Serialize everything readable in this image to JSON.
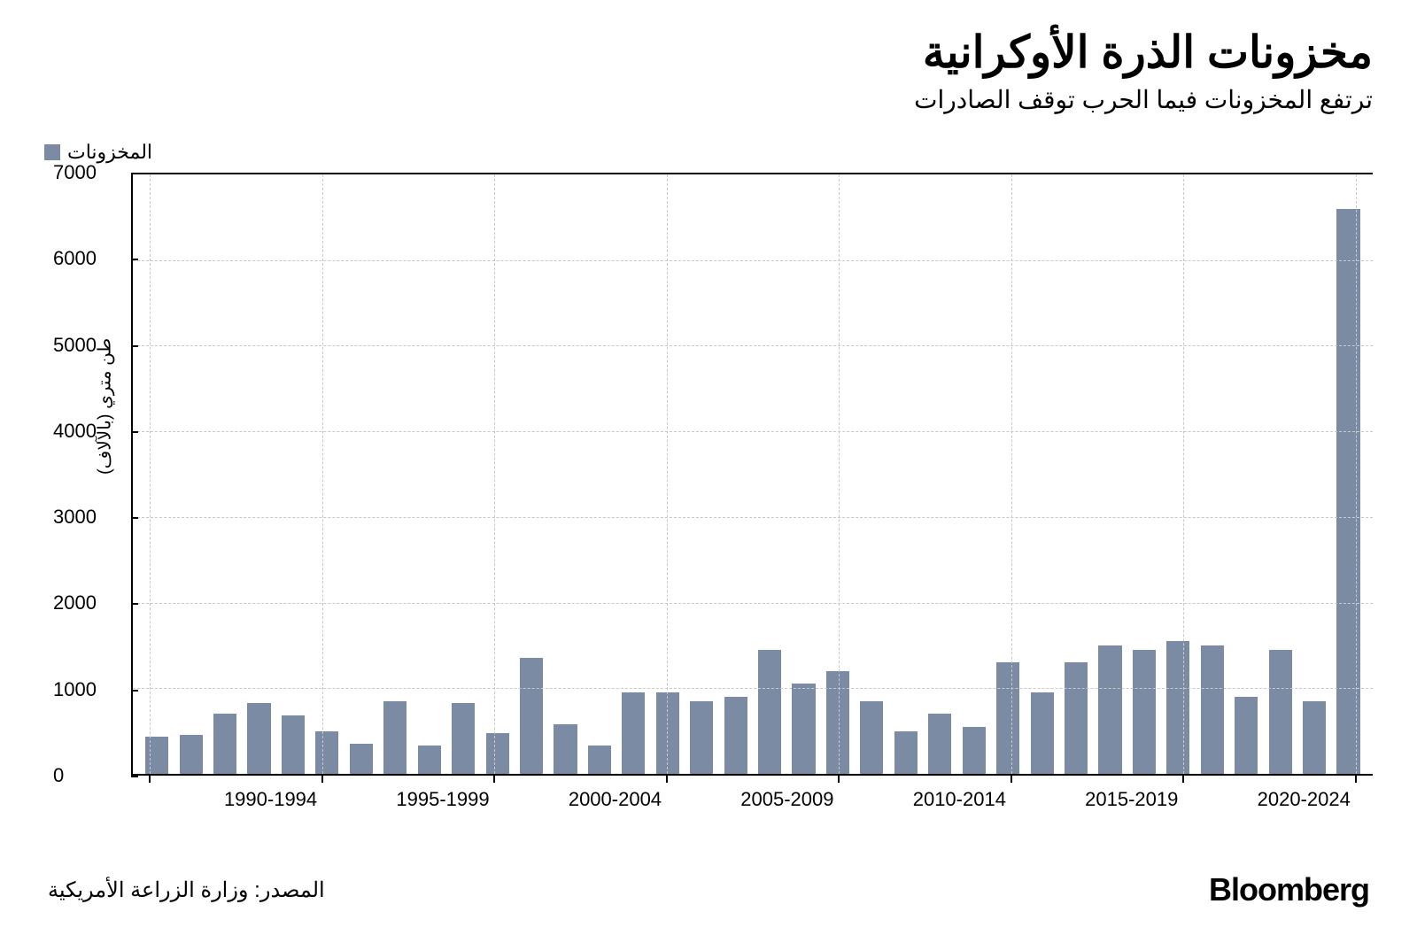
{
  "title": "مخزونات الذرة الأوكرانية",
  "subtitle": "ترتفع المخزونات فيما الحرب توقف الصادرات",
  "legend": {
    "label": "المخزونات",
    "swatch_color": "#7a8ba3"
  },
  "y_axis": {
    "title": "طن متري (بالآلاف)",
    "min": 0,
    "max": 7000,
    "ticks": [
      0,
      1000,
      2000,
      3000,
      4000,
      5000,
      6000,
      7000
    ]
  },
  "x_axis": {
    "group_labels": [
      "1990-1994",
      "1995-1999",
      "2000-2004",
      "2005-2009",
      "2010-2014",
      "2015-2019",
      "2020-2024"
    ],
    "vlines_at": [
      0.5,
      5.5,
      10.5,
      15.5,
      20.5,
      25.5,
      30.5,
      35.5
    ]
  },
  "chart": {
    "type": "bar",
    "bar_color": "#7a8ba3",
    "background_color": "#ffffff",
    "grid_color": "#c8c8c8",
    "values": [
      430,
      450,
      700,
      830,
      680,
      500,
      350,
      850,
      330,
      830,
      480,
      1350,
      580,
      330,
      950,
      950,
      850,
      900,
      1450,
      1050,
      1200,
      850,
      500,
      700,
      550,
      1300,
      950,
      1300,
      1500,
      1450,
      1550,
      1500,
      900,
      1450,
      850,
      6600
    ]
  },
  "footer": {
    "source": "المصدر: وزارة الزراعة الأمريكية",
    "brand": "Bloomberg"
  }
}
